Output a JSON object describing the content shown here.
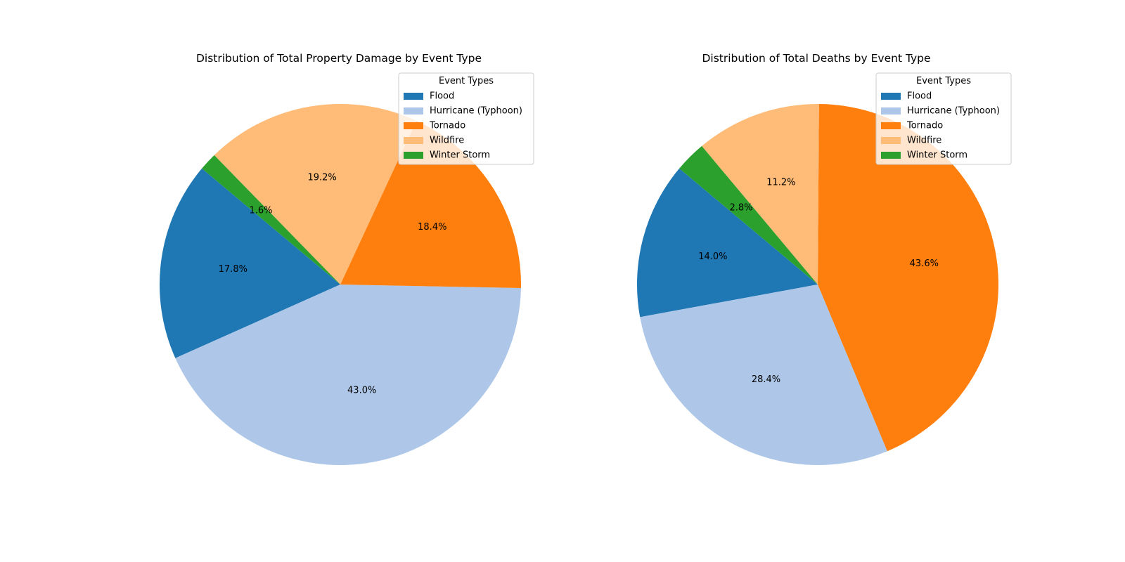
{
  "chart_data": [
    {
      "type": "pie",
      "title": "Distribution of Total Property Damage by Event Type",
      "categories": [
        "Flood",
        "Hurricane (Typhoon)",
        "Tornado",
        "Wildfire",
        "Winter Storm"
      ],
      "values": [
        17.8,
        43.0,
        18.4,
        19.2,
        1.6
      ],
      "labels": [
        "17.8%",
        "43.0%",
        "18.4%",
        "19.2%",
        "1.6%"
      ],
      "start_angle_deg": 140,
      "legend": {
        "title": "Event Types",
        "placement": "top-right"
      },
      "colors": [
        "#1f77b4",
        "#aec7e8",
        "#ff7f0e",
        "#ffbb78",
        "#2ca02c"
      ]
    },
    {
      "type": "pie",
      "title": "Distribution of Total Deaths by Event Type",
      "categories": [
        "Flood",
        "Hurricane (Typhoon)",
        "Tornado",
        "Wildfire",
        "Winter Storm"
      ],
      "values": [
        14.0,
        28.4,
        43.6,
        11.2,
        2.8
      ],
      "labels": [
        "14.0%",
        "28.4%",
        "43.6%",
        "11.2%",
        "2.8%"
      ],
      "start_angle_deg": 140,
      "legend": {
        "title": "Event Types",
        "placement": "top-right"
      },
      "colors": [
        "#1f77b4",
        "#aec7e8",
        "#ff7f0e",
        "#ffbb78",
        "#2ca02c"
      ]
    }
  ]
}
